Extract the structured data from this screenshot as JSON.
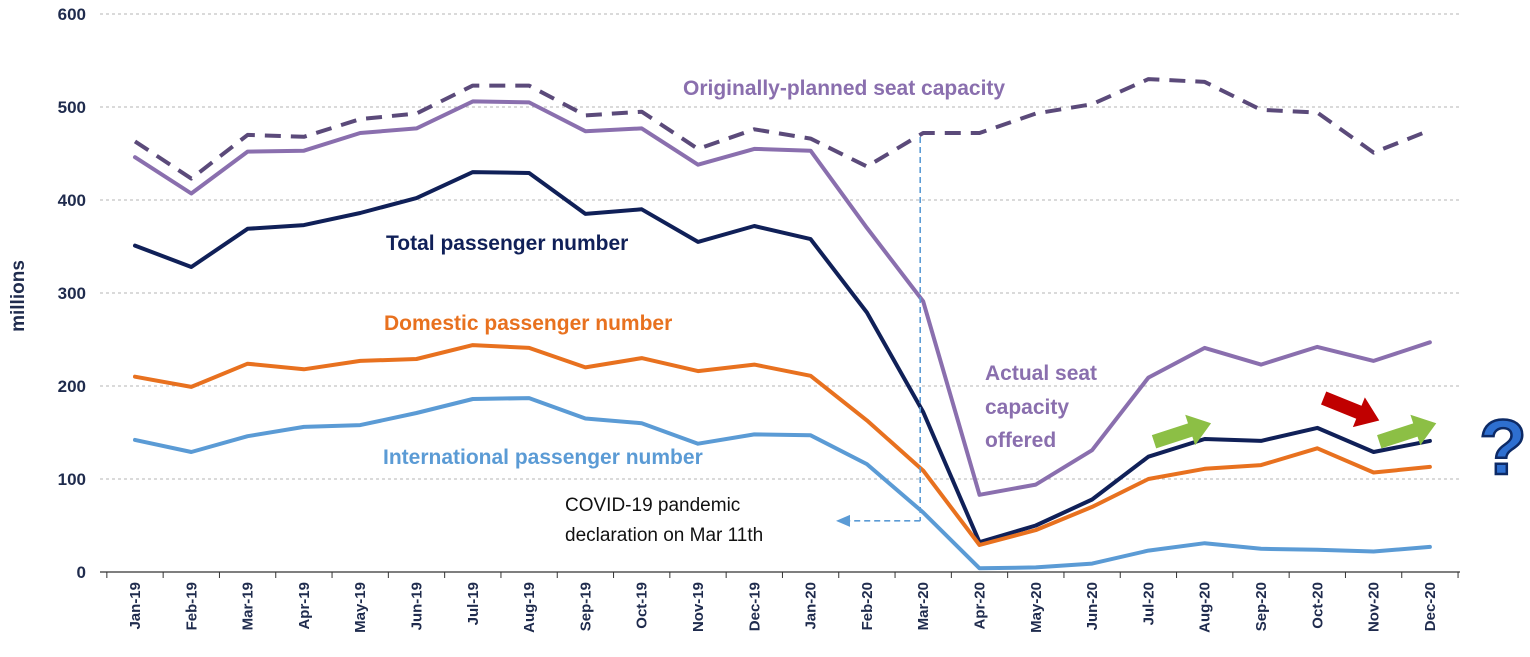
{
  "chart_data": {
    "type": "line",
    "ylabel": "millions",
    "ylim": [
      0,
      600
    ],
    "yticks": [
      "0",
      "100",
      "200",
      "300",
      "400",
      "500",
      "600"
    ],
    "grid": true,
    "categories": [
      "Jan-19",
      "Feb-19",
      "Mar-19",
      "Apr-19",
      "May-19",
      "Jun-19",
      "Jul-19",
      "Aug-19",
      "Sep-19",
      "Oct-19",
      "Nov-19",
      "Dec-19",
      "Jan-20",
      "Feb-20",
      "Mar-20",
      "Apr-20",
      "May-20",
      "Jun-20",
      "Jul-20",
      "Aug-20",
      "Sep-20",
      "Oct-20",
      "Nov-20",
      "Dec-20"
    ],
    "series": [
      {
        "name": "Originally-planned seat capacity",
        "color": "#5b4a7a",
        "style": "dashed",
        "values": [
          463,
          423,
          470,
          468,
          487,
          493,
          523,
          523,
          491,
          495,
          455,
          476,
          466,
          436,
          472,
          472,
          493,
          503,
          530,
          527,
          497,
          494,
          451,
          475
        ]
      },
      {
        "name": "Actual seat capacity offered",
        "color": "#8a6fae",
        "style": "solid",
        "values": [
          446,
          407,
          452,
          453,
          472,
          477,
          506,
          505,
          474,
          477,
          438,
          455,
          453,
          370,
          291,
          83,
          94,
          131,
          209,
          241,
          223,
          242,
          227,
          247
        ]
      },
      {
        "name": "Total passenger number",
        "color": "#102058",
        "style": "solid",
        "values": [
          351,
          328,
          369,
          373,
          386,
          402,
          430,
          429,
          385,
          390,
          355,
          372,
          358,
          279,
          172,
          32,
          50,
          78,
          124,
          143,
          141,
          155,
          129,
          141
        ]
      },
      {
        "name": "Domestic passenger number",
        "color": "#e8711f",
        "style": "solid",
        "values": [
          210,
          199,
          224,
          218,
          227,
          229,
          244,
          241,
          220,
          230,
          216,
          223,
          211,
          163,
          109,
          29,
          45,
          70,
          100,
          111,
          115,
          133,
          107,
          113
        ]
      },
      {
        "name": "International passenger number",
        "color": "#5b9bd5",
        "style": "solid",
        "values": [
          142,
          129,
          146,
          156,
          158,
          171,
          186,
          187,
          165,
          160,
          138,
          148,
          147,
          116,
          64,
          4,
          5,
          9,
          23,
          31,
          25,
          24,
          22,
          27
        ]
      }
    ],
    "labels": {
      "planned": "Originally-planned seat capacity",
      "actual_line1": "Actual seat",
      "actual_line2": "capacity",
      "actual_line3": "offered",
      "total": "Total passenger number",
      "domestic": "Domestic passenger number",
      "international": "International passenger number"
    },
    "annotation": {
      "line1": "COVID-19 pandemic",
      "line2": "declaration on Mar 11th",
      "marker_category": "Mar-20"
    },
    "trend_arrows": [
      {
        "between": [
          "Jul-20",
          "Aug-20"
        ],
        "direction": "up",
        "color": "#8cbf45"
      },
      {
        "between": [
          "Oct-20",
          "Nov-20"
        ],
        "direction": "down",
        "color": "#c00000"
      },
      {
        "between": [
          "Nov-20",
          "Dec-20"
        ],
        "direction": "up",
        "color": "#8cbf45"
      }
    ],
    "question_mark": "?"
  }
}
